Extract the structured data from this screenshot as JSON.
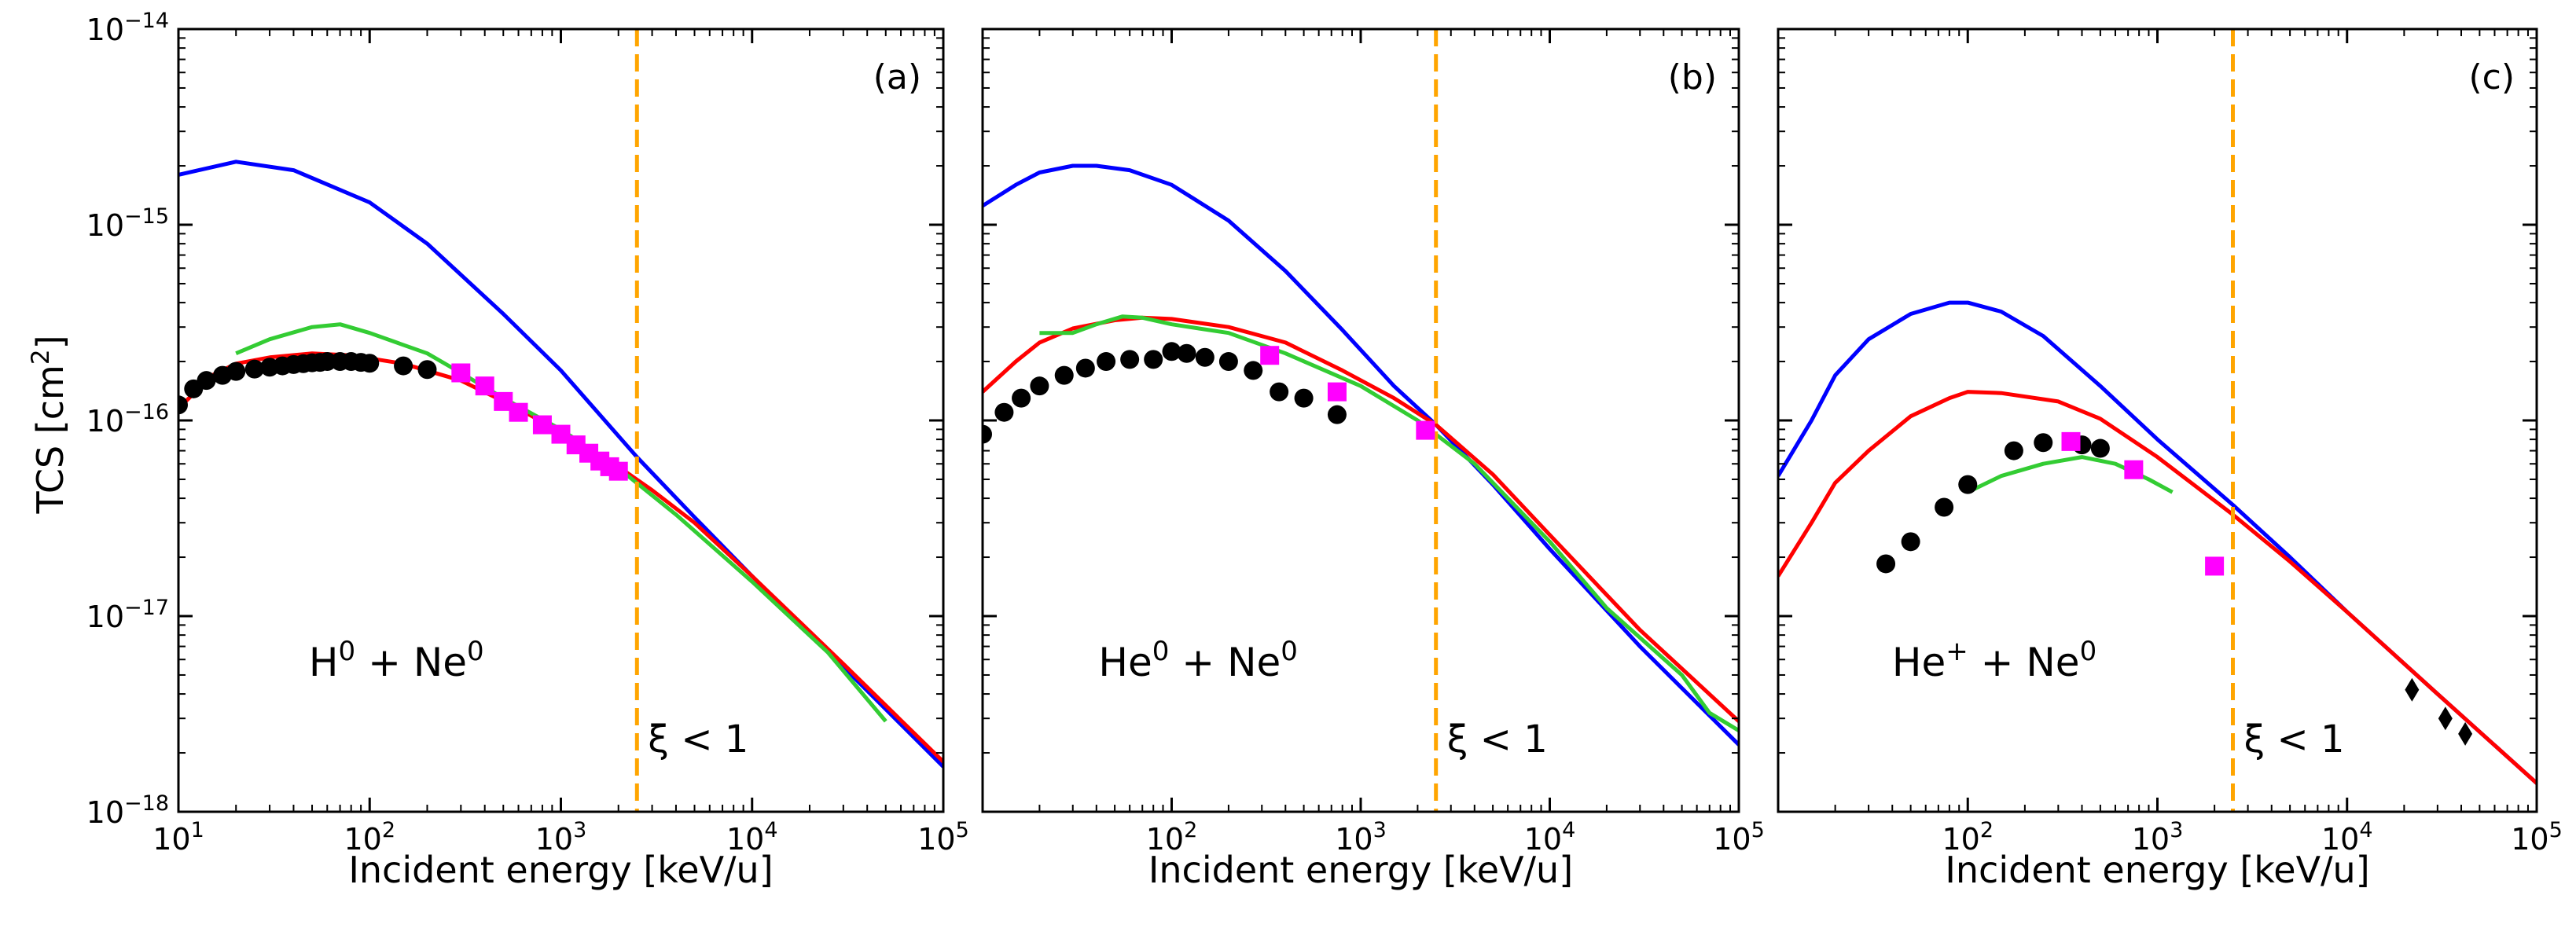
{
  "figure": {
    "ylabel_main": "TCS [cm",
    "ylabel_sup": "2",
    "ylabel_close": "]"
  },
  "colors": {
    "blue": "#0000ff",
    "red": "#ff0000",
    "green": "#33cc33",
    "orange": "#ffa500",
    "magenta": "#ff00ff",
    "black": "#000000"
  },
  "chart_data": [
    {
      "type": "line",
      "panel_label": "(a)",
      "reaction": {
        "p1": "H",
        "s1": "0",
        "mid": " + Ne",
        "s2": "0"
      },
      "xlabel": "Incident energy [keV/u]",
      "ylabel": "TCS [cm²]",
      "xscale": "log",
      "yscale": "log",
      "xlim": [
        10,
        100000
      ],
      "ylim": [
        1e-18,
        1e-14
      ],
      "x_ticks": [
        {
          "base": "10",
          "exp": "1"
        },
        {
          "base": "10",
          "exp": "2"
        },
        {
          "base": "10",
          "exp": "3"
        },
        {
          "base": "10",
          "exp": "4"
        },
        {
          "base": "10",
          "exp": "5"
        }
      ],
      "y_ticks": [
        {
          "base": "10",
          "exp": "−18"
        },
        {
          "base": "10",
          "exp": "−17"
        },
        {
          "base": "10",
          "exp": "−16"
        },
        {
          "base": "10",
          "exp": "−15"
        },
        {
          "base": "10",
          "exp": "−14"
        }
      ],
      "threshold": {
        "x": 2500,
        "label": "ξ < 1"
      },
      "series": [
        {
          "color": "blue",
          "points": [
            [
              10,
              1.8e-15
            ],
            [
              20,
              2.1e-15
            ],
            [
              40,
              1.9e-15
            ],
            [
              100,
              1.3e-15
            ],
            [
              200,
              8e-16
            ],
            [
              500,
              3.5e-16
            ],
            [
              1000,
              1.8e-16
            ],
            [
              2500,
              6.5e-17
            ],
            [
              5000,
              3.2e-17
            ],
            [
              10000,
              1.6e-17
            ],
            [
              30000,
              5.5e-18
            ],
            [
              100000,
              1.7e-18
            ]
          ]
        },
        {
          "color": "red",
          "points": [
            [
              10,
              1.15e-16
            ],
            [
              15,
              1.7e-16
            ],
            [
              20,
              1.95e-16
            ],
            [
              30,
              2.1e-16
            ],
            [
              50,
              2.2e-16
            ],
            [
              80,
              2.15e-16
            ],
            [
              150,
              1.95e-16
            ],
            [
              300,
              1.6e-16
            ],
            [
              600,
              1.15e-16
            ],
            [
              1000,
              8.7e-17
            ],
            [
              2000,
              5.8e-17
            ],
            [
              3000,
              4.4e-17
            ],
            [
              5000,
              3e-17
            ],
            [
              10000,
              1.6e-17
            ],
            [
              30000,
              5.7e-18
            ],
            [
              100000,
              1.8e-18
            ]
          ]
        },
        {
          "color": "green",
          "points": [
            [
              20,
              2.2e-16
            ],
            [
              30,
              2.6e-16
            ],
            [
              50,
              3e-16
            ],
            [
              70,
              3.1e-16
            ],
            [
              100,
              2.8e-16
            ],
            [
              200,
              2.2e-16
            ],
            [
              300,
              1.75e-16
            ],
            [
              500,
              1.3e-16
            ],
            [
              1000,
              9e-17
            ],
            [
              2000,
              5.7e-17
            ],
            [
              4000,
              3.3e-17
            ],
            [
              10000,
              1.5e-17
            ],
            [
              25000,
              6.5e-18
            ],
            [
              50000,
              2.9e-18
            ]
          ]
        }
      ],
      "markers": [
        {
          "color": "black",
          "shape": "circle",
          "points": [
            [
              10,
              1.2e-16
            ],
            [
              12,
              1.45e-16
            ],
            [
              14,
              1.6e-16
            ],
            [
              17,
              1.7e-16
            ],
            [
              20,
              1.78e-16
            ],
            [
              25,
              1.83e-16
            ],
            [
              30,
              1.87e-16
            ],
            [
              35,
              1.9e-16
            ],
            [
              40,
              1.93e-16
            ],
            [
              45,
              1.95e-16
            ],
            [
              50,
              1.97e-16
            ],
            [
              55,
              1.98e-16
            ],
            [
              60,
              2e-16
            ],
            [
              70,
              2e-16
            ],
            [
              80,
              2e-16
            ],
            [
              90,
              1.98e-16
            ],
            [
              100,
              1.96e-16
            ],
            [
              150,
              1.9e-16
            ],
            [
              200,
              1.82e-16
            ]
          ]
        },
        {
          "color": "magenta",
          "shape": "square",
          "points": [
            [
              300,
              1.75e-16
            ],
            [
              400,
              1.5e-16
            ],
            [
              500,
              1.25e-16
            ],
            [
              600,
              1.1e-16
            ],
            [
              800,
              9.5e-17
            ],
            [
              1000,
              8.5e-17
            ],
            [
              1200,
              7.5e-17
            ],
            [
              1400,
              6.8e-17
            ],
            [
              1600,
              6.2e-17
            ],
            [
              1800,
              5.8e-17
            ],
            [
              2000,
              5.5e-17
            ]
          ]
        }
      ]
    },
    {
      "type": "line",
      "panel_label": "(b)",
      "reaction": {
        "p1": "He",
        "s1": "0",
        "mid": " + Ne",
        "s2": "0"
      },
      "xlabel": "Incident energy [keV/u]",
      "ylabel": "TCS [cm²]",
      "xscale": "log",
      "yscale": "log",
      "xlim": [
        10,
        100000
      ],
      "ylim": [
        1e-18,
        1e-14
      ],
      "x_ticks": [
        {
          "base": "10",
          "exp": "2"
        },
        {
          "base": "10",
          "exp": "3"
        },
        {
          "base": "10",
          "exp": "4"
        },
        {
          "base": "10",
          "exp": "5"
        }
      ],
      "y_ticks": [],
      "threshold": {
        "x": 2500,
        "label": "ξ < 1"
      },
      "series": [
        {
          "color": "blue",
          "points": [
            [
              10,
              1.25e-15
            ],
            [
              15,
              1.6e-15
            ],
            [
              20,
              1.85e-15
            ],
            [
              30,
              2e-15
            ],
            [
              40,
              2e-15
            ],
            [
              60,
              1.9e-15
            ],
            [
              100,
              1.6e-15
            ],
            [
              200,
              1.05e-15
            ],
            [
              400,
              5.8e-16
            ],
            [
              800,
              2.9e-16
            ],
            [
              1500,
              1.5e-16
            ],
            [
              2500,
              9.5e-17
            ],
            [
              5000,
              4.7e-17
            ],
            [
              10000,
              2.2e-17
            ],
            [
              30000,
              7e-18
            ],
            [
              100000,
              2.2e-18
            ]
          ]
        },
        {
          "color": "red",
          "points": [
            [
              10,
              1.4e-16
            ],
            [
              15,
              2e-16
            ],
            [
              20,
              2.5e-16
            ],
            [
              30,
              2.95e-16
            ],
            [
              50,
              3.25e-16
            ],
            [
              70,
              3.35e-16
            ],
            [
              100,
              3.3e-16
            ],
            [
              200,
              3e-16
            ],
            [
              400,
              2.5e-16
            ],
            [
              800,
              1.8e-16
            ],
            [
              1500,
              1.3e-16
            ],
            [
              2500,
              9.5e-17
            ],
            [
              5000,
              5.3e-17
            ],
            [
              10000,
              2.6e-17
            ],
            [
              30000,
              8.5e-18
            ],
            [
              100000,
              2.9e-18
            ]
          ]
        },
        {
          "color": "green",
          "points": [
            [
              20,
              2.8e-16
            ],
            [
              30,
              2.8e-16
            ],
            [
              40,
              3.1e-16
            ],
            [
              55,
              3.4e-16
            ],
            [
              70,
              3.35e-16
            ],
            [
              100,
              3.1e-16
            ],
            [
              200,
              2.8e-16
            ],
            [
              400,
              2.2e-16
            ],
            [
              1000,
              1.5e-16
            ],
            [
              2000,
              1e-16
            ],
            [
              4000,
              6e-17
            ],
            [
              10000,
              2.4e-17
            ],
            [
              20000,
              1.1e-17
            ],
            [
              50000,
              5e-18
            ],
            [
              70000,
              3.2e-18
            ],
            [
              100000,
              2.6e-18
            ]
          ]
        }
      ],
      "markers": [
        {
          "color": "black",
          "shape": "circle",
          "points": [
            [
              10,
              8.5e-17
            ],
            [
              13,
              1.1e-16
            ],
            [
              16,
              1.3e-16
            ],
            [
              20,
              1.5e-16
            ],
            [
              27,
              1.7e-16
            ],
            [
              35,
              1.85e-16
            ],
            [
              45,
              2e-16
            ],
            [
              60,
              2.05e-16
            ],
            [
              80,
              2.05e-16
            ],
            [
              100,
              2.25e-16
            ],
            [
              120,
              2.2e-16
            ],
            [
              150,
              2.1e-16
            ],
            [
              200,
              2e-16
            ],
            [
              270,
              1.8e-16
            ],
            [
              370,
              1.4e-16
            ],
            [
              500,
              1.3e-16
            ],
            [
              750,
              1.07e-16
            ]
          ]
        },
        {
          "color": "magenta",
          "shape": "square",
          "points": [
            [
              330,
              2.15e-16
            ],
            [
              750,
              1.4e-16
            ],
            [
              2200,
              8.9e-17
            ]
          ]
        }
      ]
    },
    {
      "type": "line",
      "panel_label": "(c)",
      "reaction": {
        "p1": "He",
        "s1": "+",
        "mid": " + Ne",
        "s2": "0"
      },
      "xlabel": "Incident energy [keV/u]",
      "ylabel": "TCS [cm²]",
      "xscale": "log",
      "yscale": "log",
      "xlim": [
        10,
        100000
      ],
      "ylim": [
        1e-18,
        1e-14
      ],
      "x_ticks": [
        {
          "base": "10",
          "exp": "2"
        },
        {
          "base": "10",
          "exp": "3"
        },
        {
          "base": "10",
          "exp": "4"
        },
        {
          "base": "10",
          "exp": "5"
        }
      ],
      "y_ticks": [],
      "threshold": {
        "x": 2500,
        "label": "ξ < 1"
      },
      "series": [
        {
          "color": "blue",
          "points": [
            [
              10,
              5.2e-17
            ],
            [
              15,
              1e-16
            ],
            [
              20,
              1.7e-16
            ],
            [
              30,
              2.6e-16
            ],
            [
              50,
              3.5e-16
            ],
            [
              80,
              4e-16
            ],
            [
              100,
              4e-16
            ],
            [
              150,
              3.6e-16
            ],
            [
              250,
              2.7e-16
            ],
            [
              500,
              1.5e-16
            ],
            [
              1000,
              8e-17
            ],
            [
              2500,
              3.7e-17
            ],
            [
              5000,
              2e-17
            ],
            [
              10000,
              1.05e-17
            ],
            [
              30000,
              4e-18
            ],
            [
              100000,
              1.4e-18
            ]
          ]
        },
        {
          "color": "red",
          "points": [
            [
              10,
              1.6e-17
            ],
            [
              15,
              3e-17
            ],
            [
              20,
              4.8e-17
            ],
            [
              30,
              7e-17
            ],
            [
              50,
              1.05e-16
            ],
            [
              80,
              1.3e-16
            ],
            [
              100,
              1.4e-16
            ],
            [
              150,
              1.38e-16
            ],
            [
              300,
              1.25e-16
            ],
            [
              500,
              1.02e-16
            ],
            [
              1000,
              6.5e-17
            ],
            [
              2500,
              3.3e-17
            ],
            [
              5000,
              1.9e-17
            ],
            [
              10000,
              1.05e-17
            ],
            [
              30000,
              4e-18
            ],
            [
              100000,
              1.4e-18
            ]
          ]
        },
        {
          "color": "green",
          "points": [
            [
              100,
              4.3e-17
            ],
            [
              150,
              5.2e-17
            ],
            [
              250,
              6e-17
            ],
            [
              400,
              6.5e-17
            ],
            [
              600,
              6e-17
            ],
            [
              900,
              5e-17
            ],
            [
              1200,
              4.3e-17
            ]
          ]
        }
      ],
      "markers": [
        {
          "color": "black",
          "shape": "circle",
          "points": [
            [
              37,
              1.85e-17
            ],
            [
              50,
              2.4e-17
            ],
            [
              75,
              3.6e-17
            ],
            [
              100,
              4.7e-17
            ],
            [
              175,
              7e-17
            ],
            [
              250,
              7.7e-17
            ],
            [
              400,
              7.5e-17
            ],
            [
              500,
              7.2e-17
            ]
          ]
        },
        {
          "color": "magenta",
          "shape": "square",
          "points": [
            [
              350,
              7.8e-17
            ],
            [
              750,
              5.6e-17
            ],
            [
              2000,
              1.8e-17
            ]
          ]
        },
        {
          "color": "black",
          "shape": "diamond",
          "points": [
            [
              22000,
              4.2e-18
            ],
            [
              33000,
              3e-18
            ],
            [
              42000,
              2.5e-18
            ]
          ]
        }
      ]
    }
  ]
}
